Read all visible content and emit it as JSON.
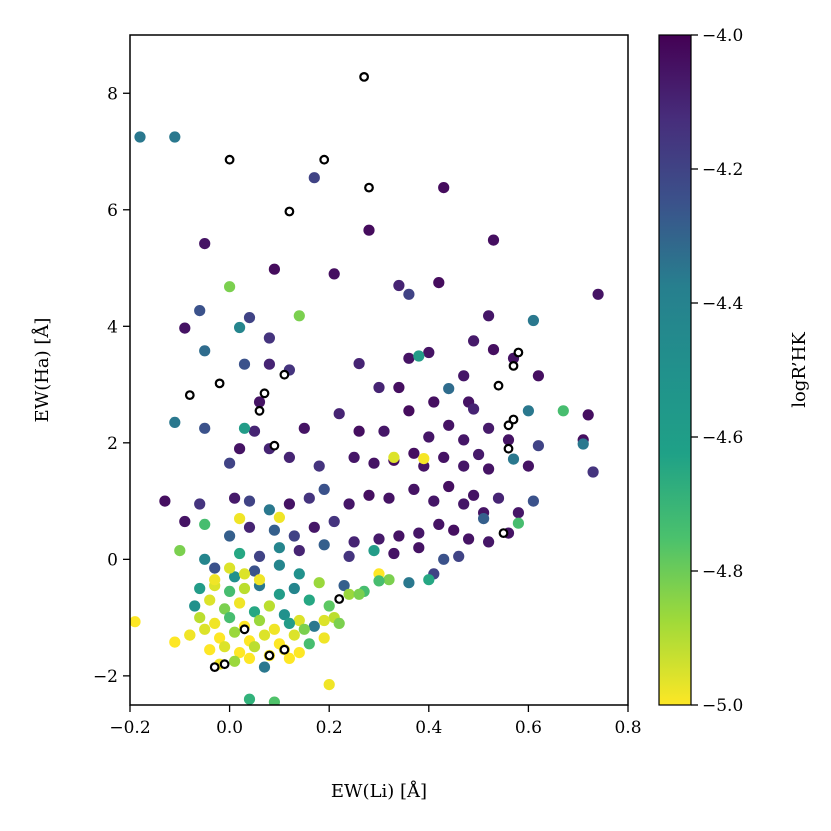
{
  "chart_data": {
    "type": "scatter",
    "xlabel": "EW(Li) [Å]",
    "ylabel": "EW(Ha) [Å]",
    "xlim": [
      -0.2,
      0.8
    ],
    "ylim": [
      -2.5,
      9.0
    ],
    "xticks": [
      -0.2,
      0.0,
      0.2,
      0.4,
      0.6,
      0.8
    ],
    "xtick_labels": [
      "−0.2",
      "0.0",
      "0.2",
      "0.4",
      "0.6",
      "0.8"
    ],
    "yticks": [
      -2,
      0,
      2,
      4,
      6,
      8
    ],
    "ytick_labels": [
      "−2",
      "0",
      "2",
      "4",
      "6",
      "8"
    ],
    "grid": false,
    "colorbar": {
      "label": "logR’HK",
      "colormap": "viridis",
      "range": [
        -5.0,
        -4.0
      ],
      "ticks": [
        -5.0,
        -4.8,
        -4.6,
        -4.4,
        -4.2,
        -4.0
      ],
      "tick_labels": [
        "−5.0",
        "−4.8",
        "−4.6",
        "−4.4",
        "−4.2",
        "−4.0"
      ]
    },
    "series": [
      {
        "marker": "filled-circle",
        "points": [
          [
            -0.18,
            7.25,
            -4.4
          ],
          [
            0.28,
            5.65,
            -4.03
          ],
          [
            0.09,
            4.98,
            -4.03
          ],
          [
            0.21,
            4.9,
            -4.04
          ],
          [
            0.43,
            6.38,
            -4.03
          ],
          [
            0.53,
            5.48,
            -4.04
          ],
          [
            0.42,
            4.75,
            -4.03
          ],
          [
            0.74,
            4.55,
            -4.05
          ],
          [
            -0.05,
            5.42,
            -4.05
          ],
          [
            0.17,
            6.55,
            -4.2
          ],
          [
            -0.11,
            7.25,
            -4.4
          ],
          [
            0.0,
            4.68,
            -4.8
          ],
          [
            0.34,
            4.7,
            -4.1
          ],
          [
            0.36,
            4.55,
            -4.2
          ],
          [
            0.52,
            4.18,
            -4.06
          ],
          [
            0.61,
            4.1,
            -4.4
          ],
          [
            0.14,
            4.18,
            -4.8
          ],
          [
            0.04,
            4.15,
            -4.2
          ],
          [
            -0.06,
            4.27,
            -4.25
          ],
          [
            0.08,
            3.8,
            -4.15
          ],
          [
            -0.09,
            3.97,
            -4.05
          ],
          [
            0.02,
            3.98,
            -4.45
          ],
          [
            0.26,
            3.36,
            -4.1
          ],
          [
            0.36,
            3.45,
            -4.05
          ],
          [
            0.4,
            3.55,
            -4.05
          ],
          [
            0.49,
            3.75,
            -4.07
          ],
          [
            0.53,
            3.6,
            -4.04
          ],
          [
            0.47,
            3.15,
            -4.06
          ],
          [
            0.62,
            3.15,
            -4.04
          ],
          [
            0.57,
            3.45,
            -4.05
          ],
          [
            -0.05,
            3.58,
            -4.35
          ],
          [
            0.08,
            3.35,
            -4.1
          ],
          [
            0.03,
            3.35,
            -4.25
          ],
          [
            0.12,
            3.25,
            -4.15
          ],
          [
            0.3,
            2.95,
            -4.1
          ],
          [
            0.34,
            2.95,
            -4.04
          ],
          [
            0.38,
            3.49,
            -4.55
          ],
          [
            0.44,
            2.93,
            -4.35
          ],
          [
            0.41,
            2.7,
            -4.04
          ],
          [
            0.48,
            2.7,
            -4.05
          ],
          [
            0.49,
            2.58,
            -4.1
          ],
          [
            0.72,
            2.48,
            -4.04
          ],
          [
            0.71,
            2.05,
            -4.04
          ],
          [
            0.71,
            1.98,
            -4.4
          ],
          [
            0.67,
            2.55,
            -4.7
          ],
          [
            0.6,
            2.55,
            -4.4
          ],
          [
            -0.11,
            2.35,
            -4.4
          ],
          [
            0.05,
            2.2,
            -4.1
          ],
          [
            0.06,
            2.7,
            -4.05
          ],
          [
            0.15,
            2.25,
            -4.05
          ],
          [
            0.22,
            2.5,
            -4.1
          ],
          [
            0.26,
            2.2,
            -4.04
          ],
          [
            0.31,
            2.2,
            -4.06
          ],
          [
            0.36,
            2.55,
            -4.03
          ],
          [
            0.4,
            2.1,
            -4.06
          ],
          [
            0.44,
            2.3,
            -4.05
          ],
          [
            0.47,
            2.05,
            -4.06
          ],
          [
            0.52,
            2.25,
            -4.07
          ],
          [
            0.56,
            2.05,
            -4.05
          ],
          [
            0.62,
            1.95,
            -4.2
          ],
          [
            -0.05,
            2.25,
            -4.25
          ],
          [
            0.03,
            2.25,
            -4.55
          ],
          [
            0.0,
            1.65,
            -4.2
          ],
          [
            0.02,
            1.9,
            -4.05
          ],
          [
            0.08,
            1.9,
            -4.1
          ],
          [
            0.12,
            1.75,
            -4.1
          ],
          [
            0.18,
            1.6,
            -4.15
          ],
          [
            0.25,
            1.75,
            -4.06
          ],
          [
            0.29,
            1.65,
            -4.05
          ],
          [
            0.33,
            1.7,
            -4.03
          ],
          [
            0.37,
            1.82,
            -4.04
          ],
          [
            0.39,
            1.6,
            -4.05
          ],
          [
            0.43,
            1.75,
            -4.05
          ],
          [
            0.47,
            1.6,
            -4.06
          ],
          [
            0.5,
            1.8,
            -4.07
          ],
          [
            0.52,
            1.55,
            -4.05
          ],
          [
            0.57,
            1.72,
            -4.4
          ],
          [
            0.6,
            1.6,
            -4.05
          ],
          [
            0.73,
            1.5,
            -4.15
          ],
          [
            -0.13,
            1.0,
            -4.04
          ],
          [
            -0.06,
            0.95,
            -4.15
          ],
          [
            0.01,
            1.05,
            -4.07
          ],
          [
            0.04,
            1.0,
            -4.2
          ],
          [
            0.08,
            0.85,
            -4.4
          ],
          [
            0.12,
            0.95,
            -4.05
          ],
          [
            0.16,
            1.05,
            -4.15
          ],
          [
            0.19,
            1.2,
            -4.25
          ],
          [
            0.24,
            0.95,
            -4.06
          ],
          [
            0.28,
            1.1,
            -4.04
          ],
          [
            0.32,
            1.05,
            -4.05
          ],
          [
            0.37,
            1.2,
            -4.05
          ],
          [
            0.41,
            1.0,
            -4.06
          ],
          [
            0.44,
            1.25,
            -4.04
          ],
          [
            0.47,
            0.95,
            -4.06
          ],
          [
            0.49,
            1.1,
            -4.05
          ],
          [
            0.51,
            0.8,
            -4.05
          ],
          [
            0.54,
            1.05,
            -4.1
          ],
          [
            0.58,
            0.8,
            -4.06
          ],
          [
            0.61,
            1.0,
            -4.25
          ],
          [
            -0.09,
            0.65,
            -4.05
          ],
          [
            -0.05,
            0.6,
            -4.7
          ],
          [
            0.0,
            0.4,
            -4.3
          ],
          [
            0.04,
            0.55,
            -4.1
          ],
          [
            0.09,
            0.5,
            -4.3
          ],
          [
            0.13,
            0.4,
            -4.2
          ],
          [
            0.17,
            0.55,
            -4.06
          ],
          [
            0.21,
            0.65,
            -4.15
          ],
          [
            0.25,
            0.3,
            -4.1
          ],
          [
            0.3,
            0.35,
            -4.07
          ],
          [
            0.34,
            0.4,
            -4.05
          ],
          [
            0.38,
            0.45,
            -4.06
          ],
          [
            0.42,
            0.6,
            -4.05
          ],
          [
            0.45,
            0.5,
            -4.04
          ],
          [
            0.48,
            0.35,
            -4.05
          ],
          [
            0.51,
            0.7,
            -4.3
          ],
          [
            0.52,
            0.3,
            -4.06
          ],
          [
            0.56,
            0.45,
            -4.05
          ],
          [
            0.58,
            0.62,
            -4.7
          ],
          [
            -0.1,
            0.15,
            -4.8
          ],
          [
            -0.05,
            0.0,
            -4.45
          ],
          [
            0.02,
            0.1,
            -4.6
          ],
          [
            0.06,
            0.05,
            -4.2
          ],
          [
            0.1,
            0.2,
            -4.45
          ],
          [
            0.14,
            0.15,
            -4.1
          ],
          [
            0.19,
            0.25,
            -4.3
          ],
          [
            0.24,
            0.05,
            -4.15
          ],
          [
            0.29,
            0.15,
            -4.55
          ],
          [
            0.33,
            0.1,
            -4.05
          ],
          [
            0.38,
            0.2,
            -4.05
          ],
          [
            0.43,
            0.0,
            -4.25
          ],
          [
            0.46,
            0.05,
            -4.2
          ],
          [
            0.41,
            -0.25,
            -4.2
          ],
          [
            -0.03,
            -0.15,
            -4.25
          ],
          [
            0.01,
            -0.3,
            -4.5
          ],
          [
            0.05,
            -0.2,
            -4.25
          ],
          [
            0.1,
            -0.1,
            -4.45
          ],
          [
            0.14,
            -0.25,
            -4.5
          ],
          [
            0.18,
            -0.4,
            -4.85
          ],
          [
            0.23,
            -0.45,
            -4.3
          ],
          [
            0.3,
            -0.25,
            -5.0
          ],
          [
            0.32,
            -0.35,
            -4.8
          ],
          [
            0.4,
            -0.35,
            -4.6
          ],
          [
            0.36,
            -0.4,
            -4.4
          ],
          [
            -0.06,
            -0.5,
            -4.55
          ],
          [
            -0.03,
            -0.45,
            -4.95
          ],
          [
            0.0,
            -0.55,
            -4.7
          ],
          [
            0.03,
            -0.5,
            -4.9
          ],
          [
            0.06,
            -0.45,
            -4.4
          ],
          [
            0.1,
            -0.6,
            -4.55
          ],
          [
            0.13,
            -0.5,
            -4.45
          ],
          [
            0.16,
            -0.7,
            -4.6
          ],
          [
            0.2,
            -0.8,
            -4.75
          ],
          [
            0.24,
            -0.6,
            -4.85
          ],
          [
            0.27,
            -0.55,
            -4.7
          ],
          [
            -0.07,
            -0.8,
            -4.5
          ],
          [
            -0.04,
            -0.7,
            -4.95
          ],
          [
            -0.01,
            -0.85,
            -4.8
          ],
          [
            0.02,
            -0.75,
            -4.98
          ],
          [
            0.05,
            -0.9,
            -4.6
          ],
          [
            0.08,
            -0.8,
            -4.9
          ],
          [
            0.11,
            -0.95,
            -4.5
          ],
          [
            0.14,
            -1.05,
            -4.95
          ],
          [
            0.17,
            -1.15,
            -4.4
          ],
          [
            0.21,
            -1.0,
            -4.9
          ],
          [
            -0.06,
            -1.0,
            -4.9
          ],
          [
            -0.03,
            -1.1,
            -4.98
          ],
          [
            0.0,
            -1.0,
            -4.7
          ],
          [
            0.03,
            -1.15,
            -5.0
          ],
          [
            0.06,
            -1.05,
            -4.85
          ],
          [
            0.09,
            -1.2,
            -4.98
          ],
          [
            0.12,
            -1.1,
            -4.55
          ],
          [
            0.15,
            -1.2,
            -4.8
          ],
          [
            0.19,
            -1.05,
            -4.95
          ],
          [
            0.22,
            -1.1,
            -4.8
          ],
          [
            -0.08,
            -1.3,
            -5.0
          ],
          [
            -0.05,
            -1.2,
            -4.95
          ],
          [
            -0.02,
            -1.35,
            -5.0
          ],
          [
            0.01,
            -1.25,
            -4.85
          ],
          [
            0.04,
            -1.4,
            -5.0
          ],
          [
            0.07,
            -1.3,
            -4.95
          ],
          [
            0.1,
            -1.45,
            -5.0
          ],
          [
            0.13,
            -1.3,
            -4.95
          ],
          [
            0.16,
            -1.45,
            -4.7
          ],
          [
            0.19,
            -1.35,
            -4.98
          ],
          [
            -0.04,
            -1.55,
            -5.0
          ],
          [
            -0.01,
            -1.5,
            -4.95
          ],
          [
            0.02,
            -1.6,
            -5.0
          ],
          [
            0.05,
            -1.5,
            -4.9
          ],
          [
            0.08,
            -1.65,
            -5.0
          ],
          [
            0.11,
            -1.55,
            -4.98
          ],
          [
            0.14,
            -1.6,
            -5.0
          ],
          [
            -0.02,
            -1.8,
            -4.98
          ],
          [
            0.01,
            -1.75,
            -4.85
          ],
          [
            0.04,
            -1.7,
            -5.0
          ],
          [
            0.07,
            -1.85,
            -4.4
          ],
          [
            0.12,
            -1.7,
            -5.0
          ],
          [
            -0.19,
            -1.07,
            -5.0
          ],
          [
            -0.11,
            -1.42,
            -5.0
          ],
          [
            -0.08,
            -1.3,
            -4.98
          ],
          [
            0.04,
            -2.4,
            -4.65
          ],
          [
            0.09,
            -2.45,
            -4.72
          ],
          [
            0.2,
            -2.15,
            -4.98
          ],
          [
            0.26,
            -0.6,
            -4.8
          ],
          [
            0.3,
            -0.37,
            -4.7
          ],
          [
            0.33,
            1.75,
            -4.95
          ],
          [
            0.39,
            1.73,
            -4.99
          ],
          [
            0.1,
            0.72,
            -4.98
          ],
          [
            0.0,
            -0.15,
            -4.95
          ],
          [
            -0.03,
            -0.35,
            -4.98
          ],
          [
            0.06,
            -0.35,
            -4.98
          ],
          [
            0.03,
            -0.25,
            -4.95
          ],
          [
            0.02,
            0.7,
            -4.98
          ]
        ]
      },
      {
        "marker": "open-circle",
        "points": [
          [
            0.27,
            8.28
          ],
          [
            0.0,
            6.86
          ],
          [
            0.19,
            6.86
          ],
          [
            0.28,
            6.38
          ],
          [
            0.12,
            5.97
          ],
          [
            -0.08,
            2.82
          ],
          [
            -0.02,
            3.02
          ],
          [
            0.07,
            2.85
          ],
          [
            0.06,
            2.55
          ],
          [
            0.11,
            3.17
          ],
          [
            0.09,
            1.95
          ],
          [
            0.54,
            2.98
          ],
          [
            0.57,
            3.32
          ],
          [
            0.58,
            3.55
          ],
          [
            0.56,
            2.3
          ],
          [
            0.57,
            2.4
          ],
          [
            0.56,
            1.9
          ],
          [
            0.55,
            0.45
          ],
          [
            0.22,
            -0.68
          ],
          [
            0.08,
            -1.65
          ],
          [
            -0.03,
            -1.85
          ],
          [
            -0.01,
            -1.8
          ],
          [
            0.11,
            -1.55
          ],
          [
            0.03,
            -1.2
          ]
        ]
      }
    ]
  }
}
